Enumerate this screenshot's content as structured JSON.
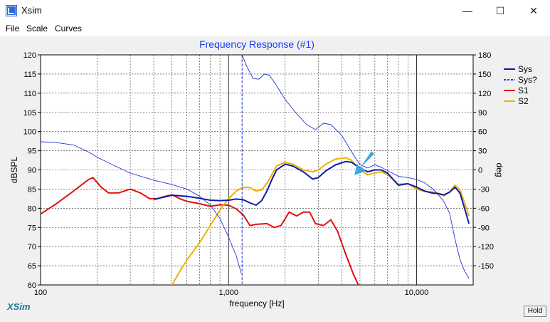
{
  "window": {
    "title": "Xsim",
    "minimize": "—",
    "maximize": "☐",
    "close": "✕"
  },
  "menu": {
    "items": [
      "File",
      "Scale",
      "Curves"
    ]
  },
  "footer": {
    "brand": "XSim",
    "hold_label": "Hold"
  },
  "colors": {
    "sys": "#0a1ea8",
    "sysq": "#2233d6",
    "s1": "#e01010",
    "s2": "#f0b000",
    "title": "#1a3aff",
    "brand": "#1b7a8c",
    "arrow": "#3ba8e0"
  },
  "chart_data": {
    "type": "line",
    "title": "Frequency Response (#1)",
    "xlabel": "frequency [Hz]",
    "ylabel": "dBSPL",
    "y2label": "deg",
    "xscale": "log",
    "xlim": [
      100,
      20000
    ],
    "ylim": [
      60,
      120
    ],
    "y2lim": [
      -180,
      180
    ],
    "x_tick_labels": [
      "100",
      "1,000",
      "10,000"
    ],
    "y_ticks": [
      60,
      65,
      70,
      75,
      80,
      85,
      90,
      95,
      100,
      105,
      110,
      115,
      120
    ],
    "y2_ticks": [
      -150,
      -120,
      -90,
      -60,
      -30,
      0,
      30,
      60,
      90,
      120,
      150,
      180
    ],
    "grid": true,
    "legend_position": "top-right",
    "series": [
      {
        "name": "Sys",
        "axis": "left",
        "style": "solid",
        "points": [
          [
            400,
            82.3
          ],
          [
            500,
            83.4
          ],
          [
            600,
            83.1
          ],
          [
            700,
            82.6
          ],
          [
            800,
            82.1
          ],
          [
            900,
            82.0
          ],
          [
            1000,
            82.1
          ],
          [
            1100,
            82.4
          ],
          [
            1200,
            82.2
          ],
          [
            1300,
            81.4
          ],
          [
            1400,
            80.8
          ],
          [
            1500,
            82.0
          ],
          [
            1600,
            84.5
          ],
          [
            1700,
            87.5
          ],
          [
            1800,
            90.0
          ],
          [
            2000,
            91.5
          ],
          [
            2200,
            91.0
          ],
          [
            2500,
            89.5
          ],
          [
            2800,
            87.6
          ],
          [
            3000,
            88.0
          ],
          [
            3300,
            89.8
          ],
          [
            3700,
            91.3
          ],
          [
            4200,
            92.2
          ],
          [
            4500,
            92.0
          ],
          [
            5000,
            90.5
          ],
          [
            5500,
            89.5
          ],
          [
            6000,
            90.0
          ],
          [
            6500,
            90.0
          ],
          [
            7000,
            89.2
          ],
          [
            8000,
            86.0
          ],
          [
            9000,
            86.4
          ],
          [
            10000,
            85.5
          ],
          [
            11000,
            84.5
          ],
          [
            12000,
            84.0
          ],
          [
            13000,
            83.8
          ],
          [
            14000,
            83.5
          ],
          [
            15000,
            84.2
          ],
          [
            16000,
            85.5
          ],
          [
            17000,
            84.0
          ],
          [
            18000,
            80.0
          ],
          [
            19000,
            76.0
          ]
        ]
      },
      {
        "name": "Sys?",
        "axis": "right",
        "style": "dashed",
        "points": [
          [
            100,
            44
          ],
          [
            120,
            43
          ],
          [
            150,
            39
          ],
          [
            180,
            28
          ],
          [
            200,
            20
          ],
          [
            250,
            6
          ],
          [
            300,
            -5
          ],
          [
            400,
            -16
          ],
          [
            500,
            -23
          ],
          [
            600,
            -30
          ],
          [
            700,
            -41
          ],
          [
            800,
            -55
          ],
          [
            900,
            -76
          ],
          [
            1000,
            -105
          ],
          [
            1100,
            -135
          ],
          [
            1170,
            -162
          ],
          [
            1180,
            180
          ],
          [
            1250,
            162
          ],
          [
            1350,
            143
          ],
          [
            1450,
            142
          ],
          [
            1550,
            150
          ],
          [
            1650,
            148
          ],
          [
            1800,
            132
          ],
          [
            2000,
            110
          ],
          [
            2300,
            88
          ],
          [
            2600,
            71
          ],
          [
            2900,
            63
          ],
          [
            3200,
            73
          ],
          [
            3500,
            71
          ],
          [
            4000,
            54
          ],
          [
            4500,
            29
          ],
          [
            5000,
            8
          ],
          [
            5500,
            3
          ],
          [
            6000,
            8
          ],
          [
            6500,
            4
          ],
          [
            7000,
            -1
          ],
          [
            8000,
            -10
          ],
          [
            9000,
            -12
          ],
          [
            10000,
            -15
          ],
          [
            11000,
            -20
          ],
          [
            12000,
            -28
          ],
          [
            13000,
            -38
          ],
          [
            14000,
            -50
          ],
          [
            15000,
            -68
          ],
          [
            16000,
            -108
          ],
          [
            17000,
            -140
          ],
          [
            18000,
            -158
          ],
          [
            19000,
            -170
          ]
        ]
      },
      {
        "name": "S1",
        "axis": "left",
        "style": "solid",
        "points": [
          [
            100,
            78.5
          ],
          [
            120,
            81
          ],
          [
            150,
            84.5
          ],
          [
            180,
            87.5
          ],
          [
            190,
            88
          ],
          [
            210,
            85.5
          ],
          [
            230,
            84
          ],
          [
            260,
            84
          ],
          [
            300,
            85
          ],
          [
            340,
            84
          ],
          [
            380,
            82.5
          ],
          [
            420,
            82.5
          ],
          [
            450,
            83
          ],
          [
            500,
            83.5
          ],
          [
            550,
            82.5
          ],
          [
            600,
            81.8
          ],
          [
            700,
            81.2
          ],
          [
            800,
            80.5
          ],
          [
            900,
            80.9
          ],
          [
            1000,
            80.8
          ],
          [
            1100,
            79.8
          ],
          [
            1200,
            78.2
          ],
          [
            1300,
            75.5
          ],
          [
            1400,
            75.8
          ],
          [
            1600,
            76
          ],
          [
            1750,
            75
          ],
          [
            1900,
            75.5
          ],
          [
            2100,
            79
          ],
          [
            2300,
            78
          ],
          [
            2500,
            79
          ],
          [
            2700,
            79
          ],
          [
            2900,
            76
          ],
          [
            3200,
            75.5
          ],
          [
            3500,
            77
          ],
          [
            3800,
            74
          ],
          [
            4200,
            68
          ],
          [
            4600,
            63
          ],
          [
            4900,
            60
          ]
        ]
      },
      {
        "name": "S2",
        "axis": "left",
        "style": "solid",
        "points": [
          [
            500,
            60
          ],
          [
            550,
            63.5
          ],
          [
            600,
            66.5
          ],
          [
            700,
            71
          ],
          [
            800,
            75.5
          ],
          [
            900,
            79.5
          ],
          [
            1000,
            82.5
          ],
          [
            1100,
            84.5
          ],
          [
            1200,
            85.5
          ],
          [
            1300,
            85.4
          ],
          [
            1400,
            84.5
          ],
          [
            1500,
            84.8
          ],
          [
            1600,
            86.5
          ],
          [
            1700,
            88.8
          ],
          [
            1800,
            91.0
          ],
          [
            2000,
            92.0
          ],
          [
            2200,
            91.5
          ],
          [
            2500,
            90.0
          ],
          [
            2800,
            89.5
          ],
          [
            3000,
            90.0
          ],
          [
            3300,
            91.5
          ],
          [
            3700,
            92.8
          ],
          [
            4200,
            93.2
          ],
          [
            4500,
            92.5
          ],
          [
            5000,
            90.0
          ],
          [
            5500,
            88.7
          ],
          [
            6000,
            89.2
          ],
          [
            6500,
            89.5
          ],
          [
            7000,
            88.8
          ],
          [
            8000,
            86.3
          ],
          [
            9000,
            86.4
          ],
          [
            10000,
            85.0
          ],
          [
            11000,
            84.4
          ],
          [
            12000,
            84.3
          ],
          [
            13000,
            84.0
          ],
          [
            14000,
            83.2
          ],
          [
            15000,
            84.3
          ],
          [
            16000,
            86.0
          ],
          [
            17000,
            84.8
          ],
          [
            18000,
            81.5
          ],
          [
            19000,
            78.0
          ]
        ]
      }
    ]
  }
}
